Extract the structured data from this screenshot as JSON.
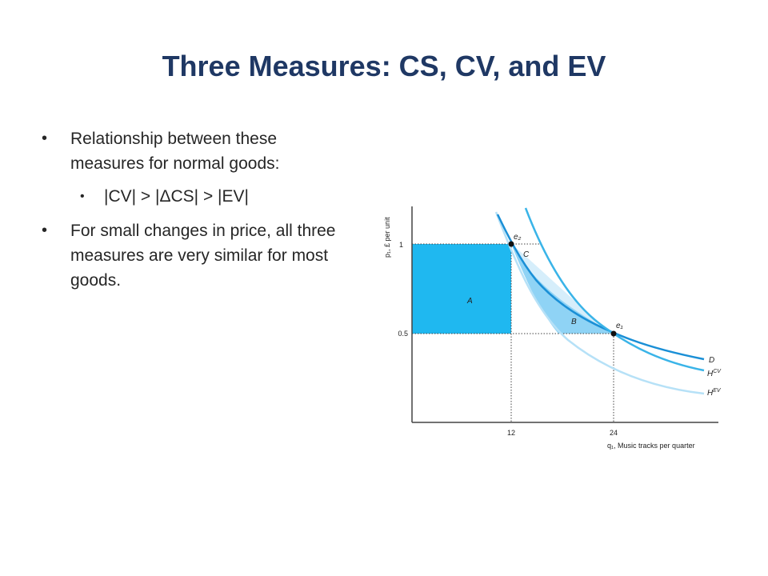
{
  "title": "Three Measures: CS, CV, and EV",
  "bullets": [
    {
      "text": "Relationship between these measures for normal goods:",
      "level": 1
    },
    {
      "text": "|CV| > |ΔCS| > |EV|",
      "level": 2
    },
    {
      "text": "For small changes in price, all three measures are very similar for most goods.",
      "level": 1
    }
  ],
  "diagram": {
    "y_axis_label": "p₁, £ per unit",
    "x_axis_label": "q₁, Music tracks per quarter",
    "y_ticks": [
      "1",
      "0.5"
    ],
    "x_ticks": [
      "12",
      "24"
    ],
    "points": {
      "e2": "e₂",
      "e1": "e₁"
    },
    "regions": {
      "A": "A",
      "B": "B",
      "C": "C"
    },
    "curves": {
      "D": "D",
      "HCV": "H",
      "HCV_sup": "CV",
      "HEV": "H",
      "HEV_sup": "EV"
    },
    "colors": {
      "area_a": "#1fb8f0",
      "area_b": "#8fd3f5",
      "area_c": "#d6eefb",
      "curve_d": "#1a8fd6",
      "curve_hcv": "#3ab4e8",
      "curve_hev": "#b6e1f7"
    }
  }
}
